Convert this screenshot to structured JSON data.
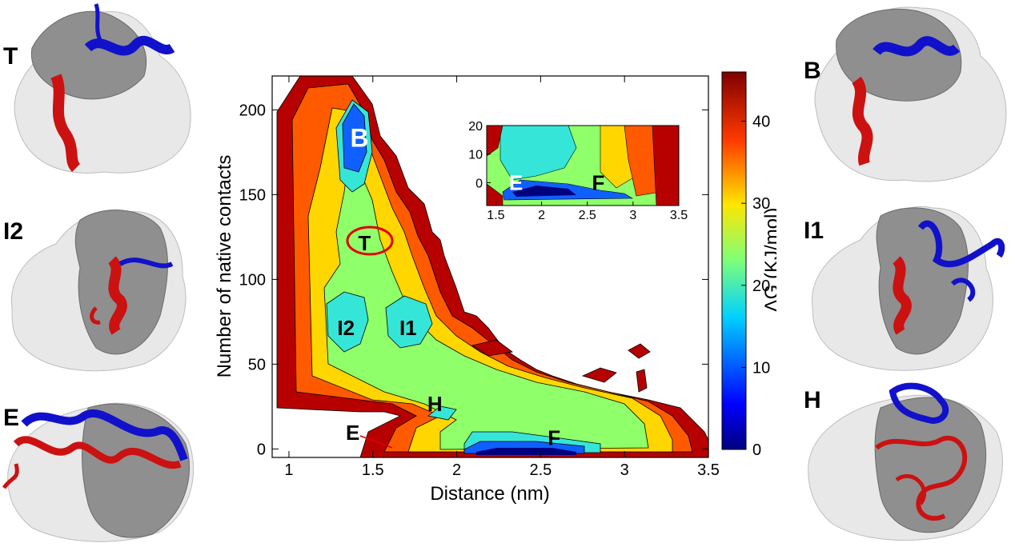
{
  "structure_panels": [
    {
      "label": "T"
    },
    {
      "label": "I2"
    },
    {
      "label": "E"
    },
    {
      "label": "B"
    },
    {
      "label": "I1"
    },
    {
      "label": "H"
    }
  ],
  "chart_data": [
    {
      "type": "heatmap",
      "title": "",
      "xlabel": "Distance (nm)",
      "ylabel": "Number of native contacts",
      "xlim": [
        0.9,
        3.5
      ],
      "ylim": [
        -5,
        220
      ],
      "xticks": [
        "1",
        "1.5",
        "2",
        "2.5",
        "3",
        "3.5"
      ],
      "yticks": [
        "0",
        "50",
        "100",
        "150",
        "200"
      ],
      "xtick_values": [
        1,
        1.5,
        2,
        2.5,
        3,
        3.5
      ],
      "ytick_values": [
        0,
        50,
        100,
        150,
        200
      ],
      "colorbar": {
        "label": "ΔG (KJ/mol)",
        "range": [
          0,
          46
        ],
        "ticks": [
          "0",
          "10",
          "20",
          "30",
          "40"
        ],
        "tick_values": [
          0,
          10,
          20,
          30,
          40
        ],
        "colormap": "jet"
      },
      "annotations": [
        {
          "text": "B",
          "x": 1.42,
          "y": 183
        },
        {
          "text": "T",
          "x": 1.45,
          "y": 122
        },
        {
          "text": "I2",
          "x": 1.34,
          "y": 72
        },
        {
          "text": "I1",
          "x": 1.71,
          "y": 72
        },
        {
          "text": "H",
          "x": 1.87,
          "y": 27
        },
        {
          "text": "E",
          "x": 1.38,
          "y": 10
        },
        {
          "text": "F",
          "x": 2.58,
          "y": 7
        }
      ],
      "grid": false
    },
    {
      "type": "heatmap",
      "title": "",
      "xlabel": "",
      "ylabel": "",
      "xlim": [
        1.4,
        3.5
      ],
      "ylim": [
        -8,
        20
      ],
      "xticks": [
        "1.5",
        "2",
        "2.5",
        "3",
        "3.5"
      ],
      "yticks": [
        "0",
        "10",
        "20"
      ],
      "xtick_values": [
        1.5,
        2,
        2.5,
        3,
        3.5
      ],
      "ytick_values": [
        0,
        10,
        20
      ],
      "annotations": [
        {
          "text": "E",
          "x": 1.72,
          "y": 0
        },
        {
          "text": "F",
          "x": 2.62,
          "y": 0
        }
      ],
      "grid": false
    }
  ]
}
